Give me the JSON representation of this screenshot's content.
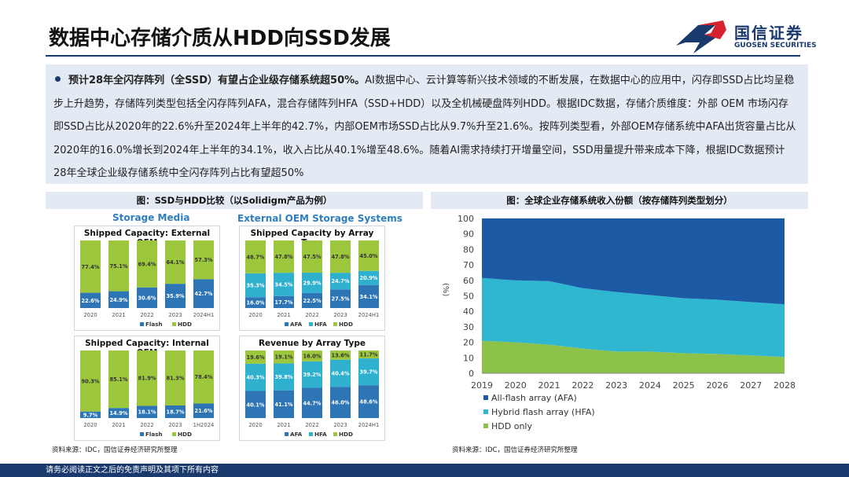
{
  "slide_title": "数据中心存储介质从HDD向SSD发展",
  "logo": {
    "cn": "国信证券",
    "en": "GUOSEN SECURITIES",
    "colors": {
      "red": "#d4232e",
      "blue": "#1a3a6e"
    }
  },
  "intro": {
    "bold": "预计28年全闪存阵列（全SSD）有望占企业级存储系统超50%。",
    "text": "AI数据中心、云计算等新兴技术领域的不断发展，在数据中心的应用中，闪存即SSD占比均呈稳步上升趋势，存储阵列类型包括全闪存阵列AFA，混合存储阵列HFA（SSD+HDD）以及全机械硬盘阵列HDD。根据IDC数据，存储介质维度：外部 OEM 市场闪存即SSD占比从2020年的22.6%升至2024年上半年的42.7%，内部OEM市场SSD占比从9.7%升至21.6%。按阵列类型看，外部OEM存储系统中AFA出货容量占比从2020年的16.0%增长到2024年上半年的34.1%，收入占比从40.1%增至48.6%。随着AI需求持续打开增量空间，SSD用量提升带来成本下降，根据IDC数据预计28年全球企业级存储系统中全闪存阵列占比有望超50%"
  },
  "left_panel": {
    "heading": "图：SSD与HDD比较（以Solidigm产品为例）",
    "sub_left": "Storage Media",
    "sub_right": "External OEM Storage Systems",
    "source": "资料来源：IDC，国信证券经济研究所整理"
  },
  "right_panel": {
    "heading": "图：全球企业存储系统收入份额（按存储阵列类型划分）",
    "source": "资料来源：IDC，国信证券经济研究所整理"
  },
  "footer": "请务必阅读正文之后的免责声明及其项下所有内容",
  "colors": {
    "flash": "#2e75b6",
    "hdd": "#9cc63b",
    "afa": "#2e75b6",
    "hfa": "#2fb0cf",
    "area_afa": "#1c5aa6",
    "area_hfa": "#2fb6d1",
    "area_hdd": "#8cc24a"
  },
  "chart_data": [
    {
      "type": "bar",
      "stacked": true,
      "title": "Shipped Capacity: External OEM",
      "categories": [
        "2020",
        "2021",
        "2022",
        "2023",
        "2024H1"
      ],
      "series": [
        {
          "name": "Flash",
          "values": [
            22.6,
            24.9,
            30.6,
            35.9,
            42.7
          ],
          "labels": [
            "22.6%",
            "24.9%",
            "30.6%",
            "35.9%",
            "42.7%"
          ]
        },
        {
          "name": "HDD",
          "values": [
            77.4,
            75.1,
            69.4,
            64.1,
            57.3
          ],
          "labels": [
            "77.4%",
            "75.1%",
            "69.4%",
            "64.1%",
            "57.3%"
          ]
        }
      ]
    },
    {
      "type": "bar",
      "stacked": true,
      "title": "Shipped Capacity by Array Type",
      "categories": [
        "2020",
        "2021",
        "2022",
        "2023",
        "2024H1"
      ],
      "series": [
        {
          "name": "AFA",
          "values": [
            16.0,
            17.7,
            22.5,
            27.5,
            34.1
          ],
          "labels": [
            "16.0%",
            "17.7%",
            "22.5%",
            "27.5%",
            "34.1%"
          ]
        },
        {
          "name": "HFA",
          "values": [
            35.3,
            34.5,
            29.9,
            24.7,
            20.9
          ],
          "labels": [
            "35.3%",
            "34.5%",
            "29.9%",
            "24.7%",
            "20.9%"
          ]
        },
        {
          "name": "HDD",
          "values": [
            48.7,
            47.8,
            47.5,
            47.8,
            45.0
          ],
          "labels": [
            "48.7%",
            "47.8%",
            "47.5%",
            "47.8%",
            "45.0%"
          ]
        }
      ]
    },
    {
      "type": "bar",
      "stacked": true,
      "title": "Shipped Capacity: Internal OEM",
      "categories": [
        "2020",
        "2021",
        "2022",
        "2023",
        "1H2024"
      ],
      "series": [
        {
          "name": "Flash",
          "values": [
            9.7,
            14.9,
            18.1,
            18.7,
            21.6
          ],
          "labels": [
            "9.7%",
            "14.9%",
            "18.1%",
            "18.7%",
            "21.6%"
          ]
        },
        {
          "name": "HDD",
          "values": [
            90.3,
            85.1,
            81.9,
            81.3,
            78.4
          ],
          "labels": [
            "90.3%",
            "85.1%",
            "81.9%",
            "81.3%",
            "78.4%"
          ]
        }
      ]
    },
    {
      "type": "bar",
      "stacked": true,
      "title": "Revenue by Array Type",
      "categories": [
        "2020",
        "2021",
        "2022",
        "2023",
        "2024H1"
      ],
      "series": [
        {
          "name": "AFA",
          "values": [
            40.1,
            41.1,
            44.7,
            46.0,
            48.6
          ],
          "labels": [
            "40.1%",
            "41.1%",
            "44.7%",
            "46.0%",
            "48.6%"
          ]
        },
        {
          "name": "HFA",
          "values": [
            40.3,
            39.8,
            39.2,
            40.4,
            39.7
          ],
          "labels": [
            "40.3%",
            "39.8%",
            "39.2%",
            "40.4%",
            "39.7%"
          ]
        },
        {
          "name": "HDD",
          "values": [
            19.6,
            19.1,
            16.0,
            13.6,
            11.7
          ],
          "labels": [
            "19.6%",
            "19.1%",
            "16.0%",
            "13.6%",
            "11.7%"
          ]
        }
      ]
    },
    {
      "type": "area",
      "stacked": true,
      "x": [
        "2019",
        "2020",
        "2021",
        "2022",
        "2023",
        "2024",
        "2025",
        "2026",
        "2027",
        "2028"
      ],
      "ylabel": "(%)",
      "ylim": [
        0,
        100
      ],
      "yticks": [
        "0",
        "10",
        "20",
        "30",
        "40",
        "50",
        "60",
        "70",
        "80",
        "90",
        "100"
      ],
      "grid": true,
      "legend": "bottom-left",
      "series": [
        {
          "name": "HDD only",
          "values": [
            21,
            20,
            18.5,
            16,
            14,
            14,
            13,
            12.5,
            11.5,
            10.5
          ]
        },
        {
          "name": "Hybrid flash array (HFA)",
          "values": [
            40.5,
            40,
            41,
            39,
            38.5,
            36.5,
            35.5,
            35,
            34.5,
            34
          ]
        },
        {
          "name": "All-flash array (AFA)",
          "values": [
            38.5,
            40,
            40.5,
            45,
            47.5,
            49.5,
            51.5,
            52.5,
            54,
            55.5
          ]
        }
      ],
      "legend_order": [
        "All-flash array (AFA)",
        "Hybrid flash array (HFA)",
        "HDD only"
      ]
    }
  ]
}
